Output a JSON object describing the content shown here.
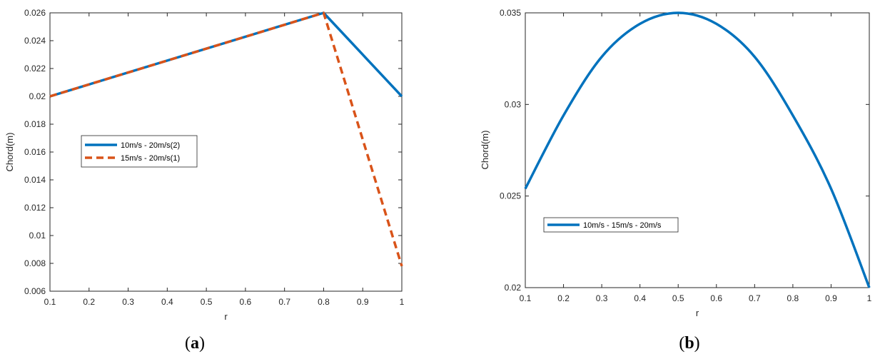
{
  "chart_data": [
    {
      "type": "line",
      "caption": "(a)",
      "caption_parts": [
        "(",
        "a",
        ")"
      ],
      "xlabel": "r",
      "ylabel": "Chord(m)",
      "xlim": [
        0.1,
        1
      ],
      "ylim": [
        0.006,
        0.026
      ],
      "xticks": [
        "0.1",
        "0.2",
        "0.3",
        "0.4",
        "0.5",
        "0.6",
        "0.7",
        "0.8",
        "0.9",
        "1"
      ],
      "yticks": [
        "0.006",
        "0.008",
        "0.01",
        "0.012",
        "0.014",
        "0.016",
        "0.018",
        "0.02",
        "0.022",
        "0.024",
        "0.026"
      ],
      "grid": false,
      "legend_position": "middle-left",
      "series": [
        {
          "name": "10m/s - 20m/s(2)",
          "color": "#0072BD",
          "style": "solid",
          "x": [
            0.1,
            0.8,
            1.0
          ],
          "y": [
            0.02,
            0.026,
            0.02
          ]
        },
        {
          "name": "15m/s - 20m/s(1)",
          "color": "#D95319",
          "style": "dashed",
          "x": [
            0.1,
            0.8,
            1.0
          ],
          "y": [
            0.02,
            0.026,
            0.0078
          ]
        }
      ]
    },
    {
      "type": "line",
      "caption": "(b)",
      "caption_parts": [
        "(",
        "b",
        ")"
      ],
      "xlabel": "r",
      "ylabel": "Chord(m)",
      "xlim": [
        0.1,
        1
      ],
      "ylim": [
        0.02,
        0.035
      ],
      "xticks": [
        "0.1",
        "0.2",
        "0.3",
        "0.4",
        "0.5",
        "0.6",
        "0.7",
        "0.8",
        "0.9",
        "1"
      ],
      "yticks": [
        "0.02",
        "0.025",
        "0.03",
        "0.035"
      ],
      "grid": false,
      "legend_position": "middle-left",
      "series": [
        {
          "name": "10m/s - 15m/s - 20m/s",
          "color": "#0072BD",
          "style": "solid",
          "x": [
            0.1,
            0.2,
            0.3,
            0.4,
            0.5,
            0.6,
            0.7,
            0.8,
            0.9,
            1.0
          ],
          "y": [
            0.0254,
            0.0294,
            0.0326,
            0.0344,
            0.035,
            0.0344,
            0.0326,
            0.0294,
            0.0254,
            0.02
          ]
        }
      ]
    }
  ]
}
